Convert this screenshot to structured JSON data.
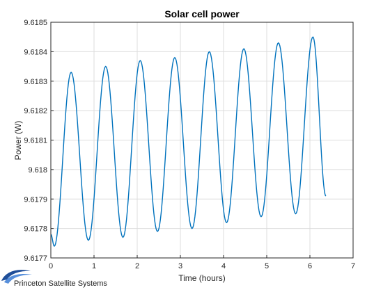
{
  "chart_data": {
    "type": "line",
    "title": "Solar cell power",
    "xlabel": "Time (hours)",
    "ylabel": "Power (W)",
    "xlim": [
      0,
      7
    ],
    "ylim": [
      9.6177,
      9.6185
    ],
    "x_ticks": [
      0,
      1,
      2,
      3,
      4,
      5,
      6,
      7
    ],
    "x_tick_labels": [
      "0",
      "1",
      "2",
      "3",
      "4",
      "5",
      "6",
      "7"
    ],
    "y_ticks": [
      9.6177,
      9.6178,
      9.6179,
      9.618,
      9.6181,
      9.6182,
      9.6183,
      9.6184,
      9.6185
    ],
    "y_tick_labels": [
      "9.6177",
      "9.6178",
      "9.6179",
      "9.618",
      "9.6181",
      "9.6182",
      "9.6183",
      "9.6184",
      "9.6185"
    ],
    "grid": true,
    "series": [
      {
        "color": "#0072bd",
        "x": [
          0,
          0.08,
          0.47,
          0.87,
          1.27,
          1.67,
          2.07,
          2.47,
          2.87,
          3.27,
          3.67,
          4.07,
          4.47,
          4.87,
          5.27,
          5.67,
          6.07,
          6.37
        ],
        "y": [
          9.61778,
          9.61774,
          9.61833,
          9.61776,
          9.61835,
          9.61777,
          9.61837,
          9.61779,
          9.61838,
          9.6178,
          9.6184,
          9.61782,
          9.61841,
          9.61784,
          9.61843,
          9.61785,
          9.61845,
          9.61791
        ]
      }
    ]
  },
  "logo": {
    "text": "Princeton Satellite Systems",
    "color": "#1f4e99"
  }
}
